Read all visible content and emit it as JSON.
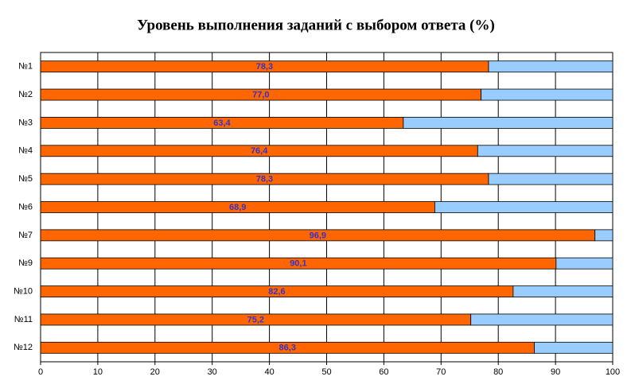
{
  "chart_data": {
    "type": "stacked-bar-horizontal",
    "title": "Уровень выполнения заданий с выбором ответа (%)",
    "categories": [
      "№1",
      "№2",
      "№3",
      "№4",
      "№5",
      "№6",
      "№7",
      "№9",
      "№10",
      "№11",
      "№12"
    ],
    "series": [
      {
        "color": "#ff6600",
        "values": [
          78.3,
          77.0,
          63.4,
          76.4,
          78.3,
          68.9,
          96.9,
          90.1,
          82.6,
          75.2,
          86.3
        ],
        "value_labels": [
          "78,3",
          "77,0",
          "63,4",
          "76,4",
          "78,3",
          "68,9",
          "96,9",
          "90,1",
          "82,6",
          "75,2",
          "86,3"
        ]
      },
      {
        "color": "#99ccff",
        "values": [
          21.7,
          23.0,
          36.6,
          23.6,
          21.7,
          31.1,
          3.1,
          9.9,
          17.4,
          24.8,
          13.7
        ]
      }
    ],
    "xlim": [
      0,
      100
    ],
    "xticks": [
      0,
      10,
      20,
      30,
      40,
      50,
      60,
      70,
      80,
      90,
      100
    ],
    "grid": true,
    "label_color": "#3333cc"
  }
}
